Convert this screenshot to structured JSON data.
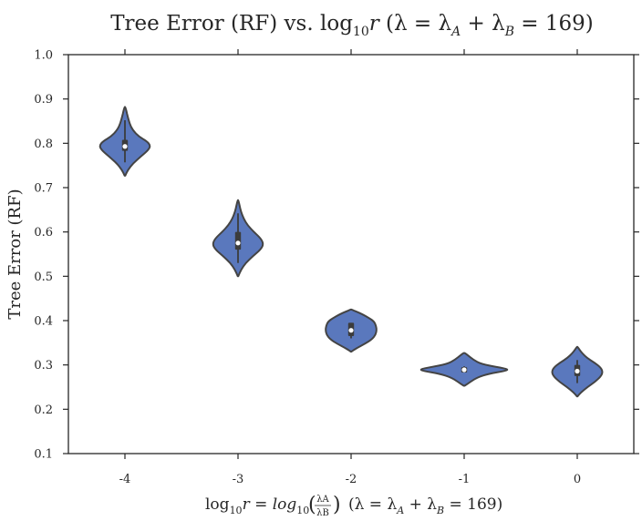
{
  "chart_data": {
    "type": "violin",
    "title": "Tree Error (RF) vs. log₁₀r (λ = λ_A + λ_B = 169)",
    "title_parts": {
      "lead": "Tree Error (RF) vs. ",
      "math": "log",
      "sub": "10",
      "var": "r",
      "tail": " (λ = λ",
      "subA": "A",
      "mid": " + λ",
      "subB": "B",
      "end": " = 169)"
    },
    "ylabel": "Tree Error (RF)",
    "xlabel_parts": {
      "a": "log",
      "a_sub": "10",
      "b": "r = log",
      "b_sub": "10",
      "frac_num": "λA",
      "frac_den": "λB",
      "c": "(λ = λ",
      "c_subA": "A",
      "c_mid": " + λ",
      "c_subB": "B",
      "c_end": " = 169)"
    },
    "ylim": [
      0.1,
      1.0
    ],
    "yticks": [
      "0.1",
      "0.2",
      "0.3",
      "0.4",
      "0.5",
      "0.6",
      "0.7",
      "0.8",
      "0.9",
      "1.0"
    ],
    "categories": [
      "-4",
      "-3",
      "-2",
      "-1",
      "0"
    ],
    "violin_color": "#5a78bd",
    "edge_color": "#444444",
    "violins": [
      {
        "category": "-4",
        "min": 0.727,
        "max": 0.882,
        "median": 0.793,
        "q1": 0.783,
        "q3": 0.808,
        "profile": [
          [
            0.727,
            0.01
          ],
          [
            0.74,
            0.12
          ],
          [
            0.755,
            0.32
          ],
          [
            0.77,
            0.62
          ],
          [
            0.785,
            0.92
          ],
          [
            0.795,
            1.0
          ],
          [
            0.805,
            0.85
          ],
          [
            0.815,
            0.55
          ],
          [
            0.83,
            0.3
          ],
          [
            0.845,
            0.18
          ],
          [
            0.86,
            0.11
          ],
          [
            0.875,
            0.05
          ],
          [
            0.882,
            0.01
          ]
        ]
      },
      {
        "category": "-3",
        "min": 0.5,
        "max": 0.672,
        "median": 0.575,
        "q1": 0.56,
        "q3": 0.6,
        "profile": [
          [
            0.5,
            0.01
          ],
          [
            0.515,
            0.12
          ],
          [
            0.53,
            0.3
          ],
          [
            0.545,
            0.58
          ],
          [
            0.56,
            0.88
          ],
          [
            0.572,
            1.0
          ],
          [
            0.585,
            0.9
          ],
          [
            0.6,
            0.62
          ],
          [
            0.615,
            0.38
          ],
          [
            0.63,
            0.22
          ],
          [
            0.645,
            0.12
          ],
          [
            0.66,
            0.06
          ],
          [
            0.672,
            0.01
          ]
        ]
      },
      {
        "category": "-2",
        "min": 0.33,
        "max": 0.425,
        "median": 0.378,
        "q1": 0.365,
        "q3": 0.395,
        "profile": [
          [
            0.33,
            0.01
          ],
          [
            0.338,
            0.22
          ],
          [
            0.348,
            0.55
          ],
          [
            0.358,
            0.82
          ],
          [
            0.368,
            0.96
          ],
          [
            0.378,
            1.0
          ],
          [
            0.388,
            0.98
          ],
          [
            0.398,
            0.9
          ],
          [
            0.406,
            0.7
          ],
          [
            0.414,
            0.45
          ],
          [
            0.42,
            0.22
          ],
          [
            0.425,
            0.01
          ]
        ]
      },
      {
        "category": "-1",
        "min": 0.253,
        "max": 0.327,
        "median": 0.289,
        "q1": 0.283,
        "q3": 0.295,
        "profile": [
          [
            0.253,
            0.01
          ],
          [
            0.262,
            0.14
          ],
          [
            0.272,
            0.3
          ],
          [
            0.28,
            0.55
          ],
          [
            0.286,
            0.9
          ],
          [
            0.29,
            1.0
          ],
          [
            0.295,
            0.75
          ],
          [
            0.302,
            0.38
          ],
          [
            0.312,
            0.2
          ],
          [
            0.322,
            0.08
          ],
          [
            0.327,
            0.01
          ]
        ]
      },
      {
        "category": "0",
        "min": 0.229,
        "max": 0.341,
        "median": 0.286,
        "q1": 0.275,
        "q3": 0.3,
        "profile": [
          [
            0.229,
            0.01
          ],
          [
            0.238,
            0.15
          ],
          [
            0.25,
            0.4
          ],
          [
            0.262,
            0.7
          ],
          [
            0.274,
            0.92
          ],
          [
            0.284,
            1.0
          ],
          [
            0.294,
            0.92
          ],
          [
            0.305,
            0.68
          ],
          [
            0.316,
            0.38
          ],
          [
            0.326,
            0.2
          ],
          [
            0.335,
            0.08
          ],
          [
            0.341,
            0.01
          ]
        ]
      }
    ]
  }
}
